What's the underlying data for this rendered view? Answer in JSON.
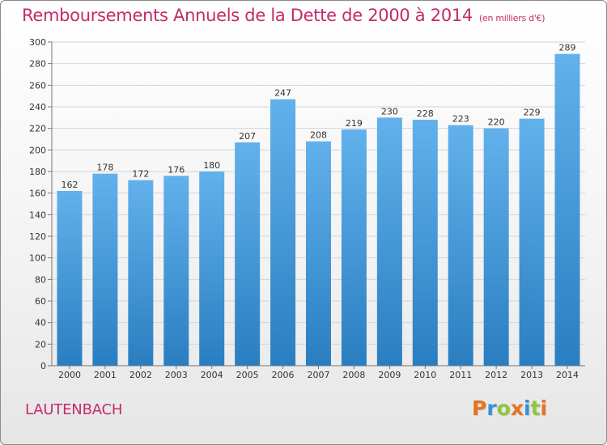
{
  "header": {
    "title": "Remboursements Annuels de la Dette de 2000 à 2014",
    "subtitle": "(en milliers d'€)"
  },
  "footer": {
    "city": "LAUTENBACH",
    "logo_text": "Proxiti"
  },
  "colors": {
    "title": "#c42a6b",
    "bar_top": "#62b1ec",
    "bar_bottom": "#2a7ec0",
    "logo_letters": [
      "#e8731e",
      "#3a8fd9",
      "#8cc63e",
      "#e8731e",
      "#3a8fd9",
      "#8cc63e",
      "#e8731e"
    ]
  },
  "chart_data": {
    "type": "bar",
    "categories": [
      "2000",
      "2001",
      "2002",
      "2003",
      "2004",
      "2005",
      "2006",
      "2007",
      "2008",
      "2009",
      "2010",
      "2011",
      "2012",
      "2013",
      "2014"
    ],
    "values": [
      162,
      178,
      172,
      176,
      180,
      207,
      247,
      208,
      219,
      230,
      228,
      223,
      220,
      229,
      289
    ],
    "ylim": [
      0,
      300
    ],
    "yticks": [
      0,
      20,
      40,
      60,
      80,
      100,
      120,
      140,
      160,
      180,
      200,
      220,
      240,
      260,
      280,
      300
    ],
    "grid": true,
    "data_labels": true
  }
}
